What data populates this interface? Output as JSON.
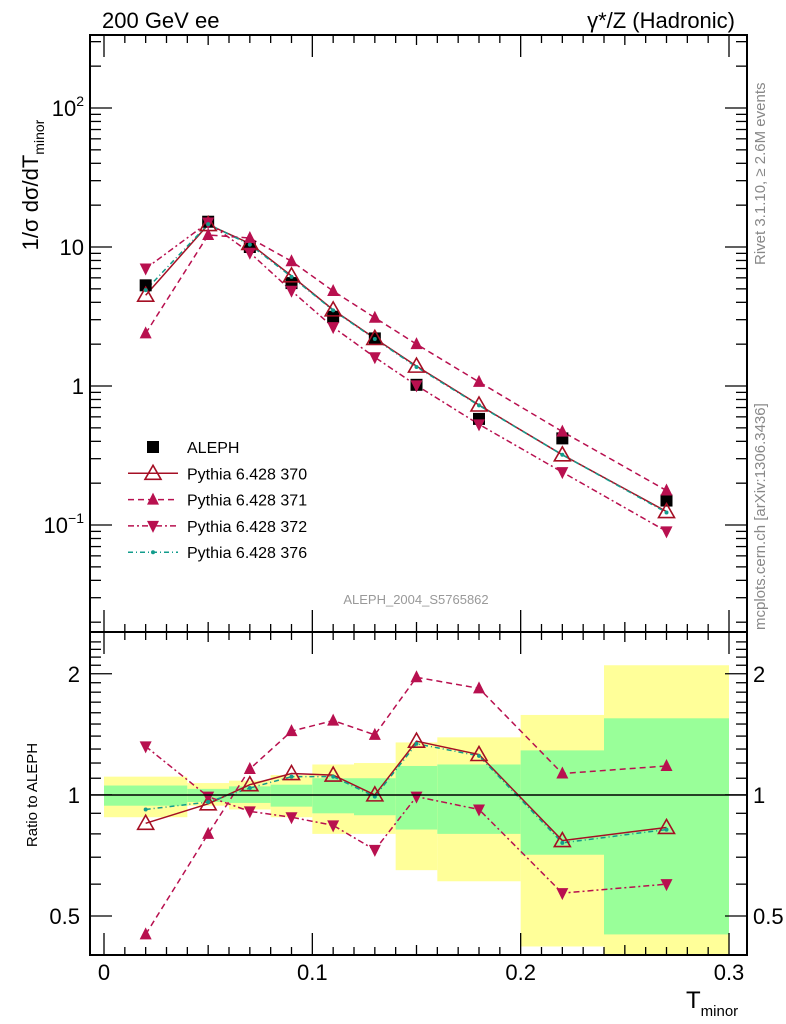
{
  "header": {
    "left": "200 GeV ee",
    "right": "γ*/Z (Hadronic)"
  },
  "side_labels": {
    "rivet": "Rivet 3.1.10, ≥ 2.6M events",
    "mcplots": "mcplots.cern.ch [arXiv:1306.3436]"
  },
  "analysis_label": "ALEPH_2004_S5765862",
  "colors": {
    "data": "#000000",
    "p370": "#a50f24",
    "p371": "#b8104f",
    "p372": "#b8104f",
    "p376": "#129c8c",
    "band_outer": "#ffff99",
    "band_inner": "#99ff99"
  },
  "chart_data": [
    {
      "type": "line",
      "ylabel_main": "1/σ  dσ/dT",
      "ylabel_sub": "minor",
      "yscale": "log",
      "xlim": [
        0,
        0.3
      ],
      "ylim": [
        0.017,
        335
      ],
      "ytick_labels": [
        {
          "v": 0.1,
          "base": "10",
          "exp": "−1"
        },
        {
          "v": 1,
          "base": "1",
          "exp": ""
        },
        {
          "v": 10,
          "base": "10",
          "exp": ""
        },
        {
          "v": 100,
          "base": "10",
          "exp": "2"
        }
      ],
      "legend_position": "bottom-left",
      "x": [
        0.02,
        0.05,
        0.07,
        0.09,
        0.11,
        0.13,
        0.15,
        0.18,
        0.22,
        0.27
      ],
      "series": [
        {
          "name": "ALEPH",
          "key": "data",
          "values": [
            5.3,
            15.2,
            10.0,
            5.5,
            3.15,
            2.2,
            1.02,
            0.58,
            0.42,
            0.15
          ]
        },
        {
          "name": "Pythia 6.428 370",
          "key": "p370",
          "values": [
            4.5,
            14.5,
            10.6,
            6.2,
            3.53,
            2.2,
            1.39,
            0.73,
            0.32,
            0.125
          ]
        },
        {
          "name": "Pythia 6.428 371",
          "key": "p371",
          "values": [
            2.39,
            12.2,
            11.6,
            7.9,
            4.82,
            3.1,
            2.0,
            1.07,
            0.47,
            0.177
          ]
        },
        {
          "name": "Pythia 6.428 372",
          "key": "p372",
          "values": [
            7.0,
            15.0,
            9.1,
            4.84,
            2.65,
            1.61,
            1.01,
            0.53,
            0.24,
            0.09
          ]
        },
        {
          "name": "Pythia 6.428 376",
          "key": "p376",
          "values": [
            4.9,
            14.6,
            10.4,
            6.1,
            3.5,
            2.18,
            1.37,
            0.725,
            0.32,
            0.123
          ]
        }
      ]
    },
    {
      "type": "line",
      "ylabel": "Ratio to ALEPH",
      "xlabel_main": "T",
      "xlabel_sub": "minor",
      "yscale": "log",
      "xlim": [
        0,
        0.3
      ],
      "ylim": [
        0.4,
        2.54
      ],
      "ytick_labels": [
        {
          "v": 0.5,
          "label": "0.5"
        },
        {
          "v": 1,
          "label": "1"
        },
        {
          "v": 2,
          "label": "2"
        }
      ],
      "xtick_labels": [
        {
          "v": 0,
          "label": "0"
        },
        {
          "v": 0.1,
          "label": "0.1"
        },
        {
          "v": 0.2,
          "label": "0.2"
        },
        {
          "v": 0.3,
          "label": "0.3"
        }
      ],
      "bin_edges": [
        0,
        0.04,
        0.06,
        0.08,
        0.1,
        0.12,
        0.14,
        0.16,
        0.2,
        0.24,
        0.3
      ],
      "band_outer": {
        "low": [
          0.88,
          0.94,
          0.92,
          0.88,
          0.8,
          0.8,
          0.65,
          0.61,
          0.42,
          0.35
        ],
        "high": [
          1.11,
          1.07,
          1.085,
          1.12,
          1.19,
          1.2,
          1.35,
          1.39,
          1.58,
          2.1
        ]
      },
      "band_inner": {
        "low": [
          0.94,
          0.96,
          0.955,
          0.935,
          0.9,
          0.89,
          0.82,
          0.8,
          0.71,
          0.45
        ],
        "high": [
          1.055,
          1.035,
          1.05,
          1.06,
          1.1,
          1.1,
          1.18,
          1.19,
          1.29,
          1.55
        ]
      },
      "x": [
        0.02,
        0.05,
        0.07,
        0.09,
        0.11,
        0.13,
        0.15,
        0.18,
        0.22,
        0.27
      ],
      "series": [
        {
          "name": "Pythia 6.428 370",
          "key": "p370",
          "values": [
            0.85,
            0.95,
            1.06,
            1.13,
            1.12,
            1.0,
            1.36,
            1.26,
            0.77,
            0.83
          ]
        },
        {
          "name": "Pythia 6.428 371",
          "key": "p371",
          "values": [
            0.45,
            0.8,
            1.16,
            1.44,
            1.53,
            1.41,
            1.96,
            1.84,
            1.13,
            1.18
          ]
        },
        {
          "name": "Pythia 6.428 372",
          "key": "p372",
          "values": [
            1.32,
            0.99,
            0.91,
            0.88,
            0.84,
            0.73,
            0.99,
            0.92,
            0.57,
            0.6
          ]
        },
        {
          "name": "Pythia 6.428 376",
          "key": "p376",
          "values": [
            0.92,
            0.96,
            1.04,
            1.11,
            1.11,
            0.99,
            1.34,
            1.25,
            0.76,
            0.82
          ]
        }
      ]
    }
  ]
}
